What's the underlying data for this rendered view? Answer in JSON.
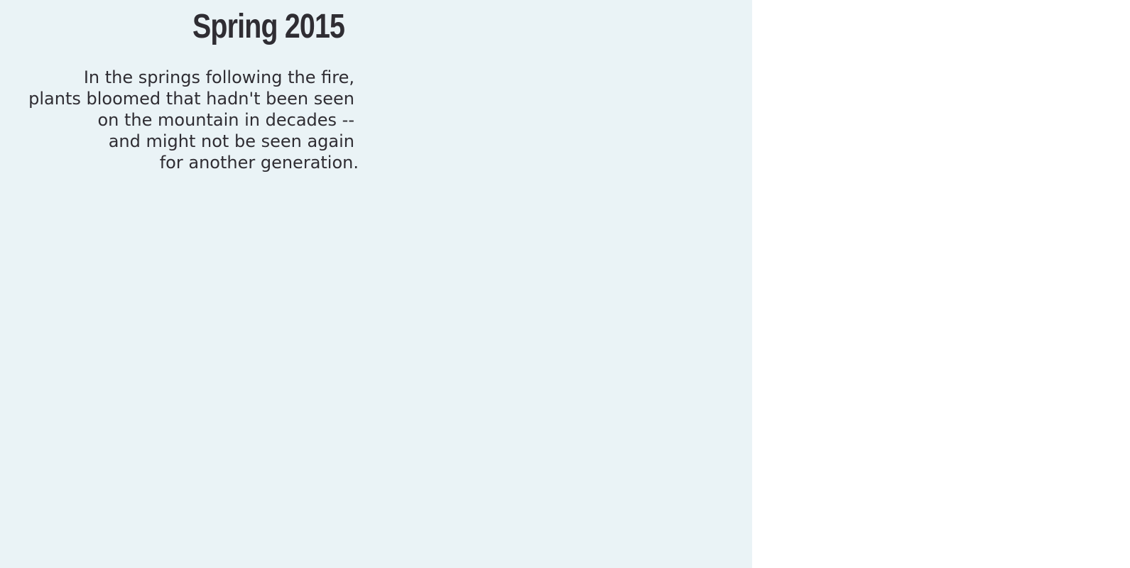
{
  "panel": {
    "title": "Spring 2015",
    "lines": [
      "In the springs following the fire,",
      "plants bloomed that hadn't been seen",
      "on the mountain in decades --",
      "and might not be seen again",
      "for another generation."
    ]
  },
  "colors": {
    "panel_background": "#eaf3f6",
    "page_background": "#ffffff",
    "text": "#2f2d33"
  }
}
